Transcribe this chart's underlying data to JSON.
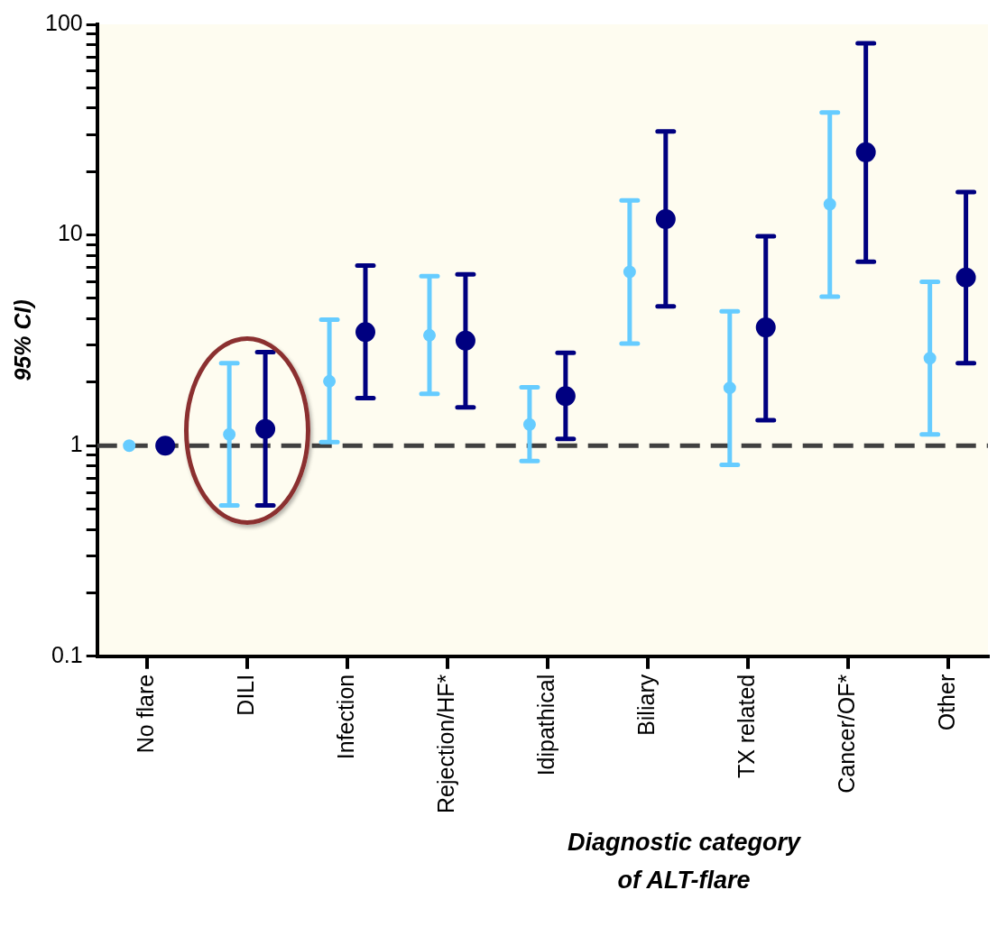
{
  "chart_data": {
    "type": "scatter",
    "ylabel": "95% CI)",
    "xlabel": "Diagnostic category\nof ALT-flare",
    "categories": [
      "No flare",
      "DILI",
      "Infection",
      "Rejection/HF*",
      "Idipathical",
      "Biliary",
      "TX related",
      "Cancer/OF*",
      "Other"
    ],
    "series": [
      {
        "color": "#66ccff",
        "values": [
          1,
          1.13,
          2.02,
          3.34,
          1.26,
          6.68,
          1.88,
          14.0,
          2.6
        ],
        "errors": [
          null,
          [
            0.52,
            2.46
          ],
          [
            1.04,
            3.96
          ],
          [
            1.76,
            6.38
          ],
          [
            0.845,
            1.89
          ],
          [
            3.05,
            14.6
          ],
          [
            0.81,
            4.34
          ],
          [
            5.1,
            38.2
          ],
          [
            1.13,
            6.0
          ]
        ]
      },
      {
        "color": "#000080",
        "values": [
          1,
          1.2,
          3.46,
          3.15,
          1.72,
          11.9,
          3.64,
          24.7,
          6.28
        ],
        "errors": [
          null,
          [
            0.52,
            2.78
          ],
          [
            1.68,
            7.16
          ],
          [
            1.52,
            6.5
          ],
          [
            1.075,
            2.76
          ],
          [
            4.58,
            31.0
          ],
          [
            1.32,
            9.86
          ],
          [
            7.47,
            81.4
          ],
          [
            2.46,
            16.0
          ]
        ]
      }
    ],
    "log": "y",
    "ylim": [
      0.1,
      100
    ],
    "yticks": [
      0.1,
      {
        "value": 0.2,
        "label": null
      },
      {
        "value": 0.3,
        "label": null
      },
      {
        "value": 0.4,
        "label": null
      },
      {
        "value": 0.5,
        "label": null
      },
      {
        "value": 0.6,
        "label": null
      },
      {
        "value": 0.7,
        "label": null
      },
      {
        "value": 0.8,
        "label": null
      },
      {
        "value": 0.9,
        "label": null
      },
      1,
      {
        "value": 2,
        "label": null
      },
      {
        "value": 3,
        "label": null
      },
      {
        "value": 4,
        "label": null
      },
      {
        "value": 5,
        "label": null
      },
      {
        "value": 6,
        "label": null
      },
      {
        "value": 7,
        "label": null
      },
      {
        "value": 8,
        "label": null
      },
      {
        "value": 9,
        "label": null
      },
      10,
      {
        "value": 20,
        "label": null
      },
      {
        "value": 30,
        "label": null
      },
      {
        "value": 40,
        "label": null
      },
      {
        "value": 50,
        "label": null
      },
      {
        "value": 60,
        "label": null
      },
      {
        "value": 70,
        "label": null
      },
      {
        "value": 80,
        "label": null
      },
      {
        "value": 90,
        "label": null
      },
      100
    ],
    "ref_lines": [
      {
        "axis": "y",
        "value": 1,
        "color": "#404040",
        "line_style": "dashed"
      }
    ],
    "marker": "circle",
    "grid": false,
    "legend": false
  }
}
